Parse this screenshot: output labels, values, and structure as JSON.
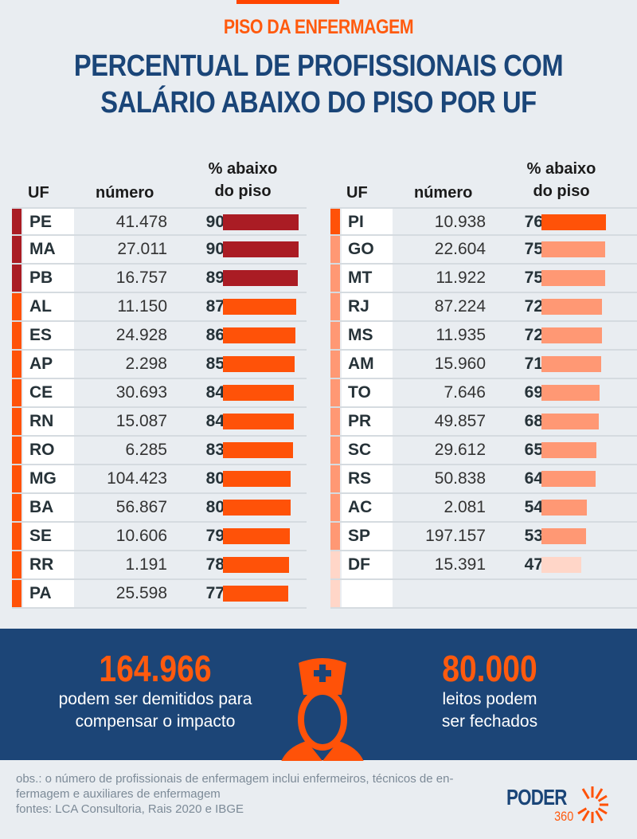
{
  "header": {
    "kicker": "PISO DA ENFERMAGEM",
    "title_line1": "PERCENTUAL DE PROFISSIONAIS COM",
    "title_line2": "SALÁRIO ABAIXO DO PISO POR UF"
  },
  "columns": {
    "uf": "UF",
    "numero": "número",
    "pct_line1": "% abaixo",
    "pct_line2": "do piso"
  },
  "colors": {
    "dark_red": "#aa1c24",
    "orange": "#ff5208",
    "light_orange": "#ff9874",
    "pale_orange": "#ffd6c8",
    "navy": "#1c4577",
    "accent": "#ff5a0e"
  },
  "left_table": [
    {
      "uf": "PE",
      "numero": "41.478",
      "pct": "90",
      "color": "#aa1c24"
    },
    {
      "uf": "MA",
      "numero": "27.011",
      "pct": "90",
      "color": "#aa1c24"
    },
    {
      "uf": "PB",
      "numero": "16.757",
      "pct": "89",
      "color": "#aa1c24"
    },
    {
      "uf": "AL",
      "numero": "11.150",
      "pct": "87",
      "color": "#ff5208"
    },
    {
      "uf": "ES",
      "numero": "24.928",
      "pct": "86",
      "color": "#ff5208"
    },
    {
      "uf": "AP",
      "numero": "2.298",
      "pct": "85",
      "color": "#ff5208"
    },
    {
      "uf": "CE",
      "numero": "30.693",
      "pct": "84",
      "color": "#ff5208"
    },
    {
      "uf": "RN",
      "numero": "15.087",
      "pct": "84",
      "color": "#ff5208"
    },
    {
      "uf": "RO",
      "numero": "6.285",
      "pct": "83",
      "color": "#ff5208"
    },
    {
      "uf": "MG",
      "numero": "104.423",
      "pct": "80",
      "color": "#ff5208"
    },
    {
      "uf": "BA",
      "numero": "56.867",
      "pct": "80",
      "color": "#ff5208"
    },
    {
      "uf": "SE",
      "numero": "10.606",
      "pct": "79",
      "color": "#ff5208"
    },
    {
      "uf": "RR",
      "numero": "1.191",
      "pct": "78",
      "color": "#ff5208"
    },
    {
      "uf": "PA",
      "numero": "25.598",
      "pct": "77",
      "color": "#ff5208"
    }
  ],
  "right_table": [
    {
      "uf": "PI",
      "numero": "10.938",
      "pct": "76",
      "color": "#ff5208"
    },
    {
      "uf": "GO",
      "numero": "22.604",
      "pct": "75",
      "color": "#ff9874"
    },
    {
      "uf": "MT",
      "numero": "11.922",
      "pct": "75",
      "color": "#ff9874"
    },
    {
      "uf": "RJ",
      "numero": "87.224",
      "pct": "72",
      "color": "#ff9874"
    },
    {
      "uf": "MS",
      "numero": "11.935",
      "pct": "72",
      "color": "#ff9874"
    },
    {
      "uf": "AM",
      "numero": "15.960",
      "pct": "71",
      "color": "#ff9874"
    },
    {
      "uf": "TO",
      "numero": "7.646",
      "pct": "69",
      "color": "#ff9874"
    },
    {
      "uf": "PR",
      "numero": "49.857",
      "pct": "68",
      "color": "#ff9874"
    },
    {
      "uf": "SC",
      "numero": "29.612",
      "pct": "65",
      "color": "#ff9874"
    },
    {
      "uf": "RS",
      "numero": "50.838",
      "pct": "64",
      "color": "#ff9874"
    },
    {
      "uf": "AC",
      "numero": "2.081",
      "pct": "54",
      "color": "#ff9874"
    },
    {
      "uf": "SP",
      "numero": "197.157",
      "pct": "53",
      "color": "#ff9874"
    },
    {
      "uf": "DF",
      "numero": "15.391",
      "pct": "47",
      "color": "#ffd6c8"
    },
    {
      "uf": "",
      "numero": "",
      "pct": "",
      "color": "#ffd6c8"
    }
  ],
  "stats": {
    "dismissals": {
      "value": "164.966",
      "line1": "podem ser demitidos para",
      "line2": "compensar o impacto"
    },
    "beds": {
      "value": "80.000",
      "line1": "leitos podem",
      "line2": "ser fechados"
    }
  },
  "footer": {
    "note_line1": "obs.: o número de profissionais de enfermagem inclui enfermeiros, técnicos de en-",
    "note_line2": "fermagem e auxiliares de enfermagem",
    "sources": "fontes: LCA Consultoria, Rais 2020 e IBGE"
  },
  "logo": {
    "word": "PODER",
    "number": "360"
  },
  "chart_data": {
    "type": "bar",
    "title": "PERCENTUAL DE PROFISSIONAIS COM SALÁRIO ABAIXO DO PISO POR UF",
    "subtitle": "PISO DA ENFERMAGEM",
    "xlabel": "UF",
    "ylabel": "% abaixo do piso",
    "categories": [
      "PE",
      "MA",
      "PB",
      "AL",
      "ES",
      "AP",
      "CE",
      "RN",
      "RO",
      "MG",
      "BA",
      "SE",
      "RR",
      "PA",
      "PI",
      "GO",
      "MT",
      "RJ",
      "MS",
      "AM",
      "TO",
      "PR",
      "SC",
      "RS",
      "AC",
      "SP",
      "DF"
    ],
    "series": [
      {
        "name": "% abaixo do piso",
        "values": [
          90,
          90,
          89,
          87,
          86,
          85,
          84,
          84,
          83,
          80,
          80,
          79,
          78,
          77,
          76,
          75,
          75,
          72,
          72,
          71,
          69,
          68,
          65,
          64,
          54,
          53,
          47
        ]
      },
      {
        "name": "número",
        "values": [
          41478,
          27011,
          16757,
          11150,
          24928,
          2298,
          30693,
          15087,
          6285,
          104423,
          56867,
          10606,
          1191,
          25598,
          10938,
          22604,
          11922,
          87224,
          11935,
          15960,
          7646,
          49857,
          29612,
          50838,
          2081,
          197157,
          15391
        ]
      }
    ],
    "ylim": [
      0,
      100
    ]
  }
}
